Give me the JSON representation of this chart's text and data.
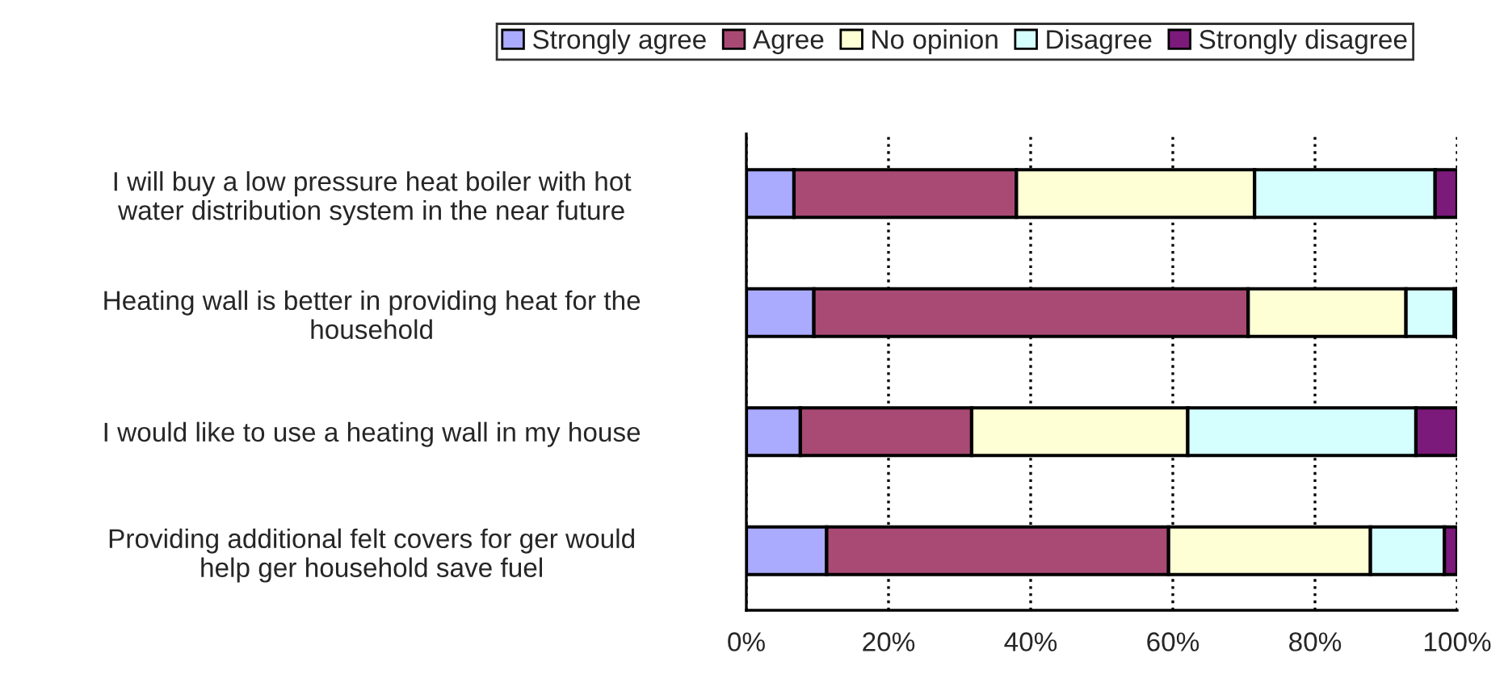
{
  "chart_data": {
    "type": "bar",
    "orientation": "horizontal",
    "stacked": true,
    "categories": [
      "I will buy a low pressure heat boiler with hot\nwater distribution system in the near future",
      "Heating wall is better in providing heat for the\nhousehold",
      "I would like to use a heating wall in my house",
      "Providing additional felt covers for ger would\nhelp ger household save fuel"
    ],
    "series": [
      {
        "name": "Strongly agree",
        "color": "#aaaaff",
        "values": [
          6.7,
          9.5,
          7.6,
          11.3
        ]
      },
      {
        "name": "Agree",
        "color": "#a94a74",
        "values": [
          31.3,
          61.1,
          24.1,
          48.1
        ]
      },
      {
        "name": "No opinion",
        "color": "#ffffd5",
        "values": [
          33.5,
          22.2,
          30.4,
          28.4
        ]
      },
      {
        "name": "Disagree",
        "color": "#d5ffff",
        "values": [
          25.4,
          6.8,
          32.1,
          10.4
        ]
      },
      {
        "name": "Strongly disagree",
        "color": "#7b1a7a",
        "values": [
          3.1,
          0.4,
          5.8,
          1.8
        ]
      }
    ],
    "xlim": [
      0,
      100
    ],
    "xticks": [
      {
        "value": 0,
        "label": "0%"
      },
      {
        "value": 20,
        "label": "20%"
      },
      {
        "value": 40,
        "label": "40%"
      },
      {
        "value": 60,
        "label": "60%"
      },
      {
        "value": 80,
        "label": "80%"
      },
      {
        "value": 100,
        "label": "100%"
      }
    ],
    "grid": "x",
    "legend": "top"
  }
}
